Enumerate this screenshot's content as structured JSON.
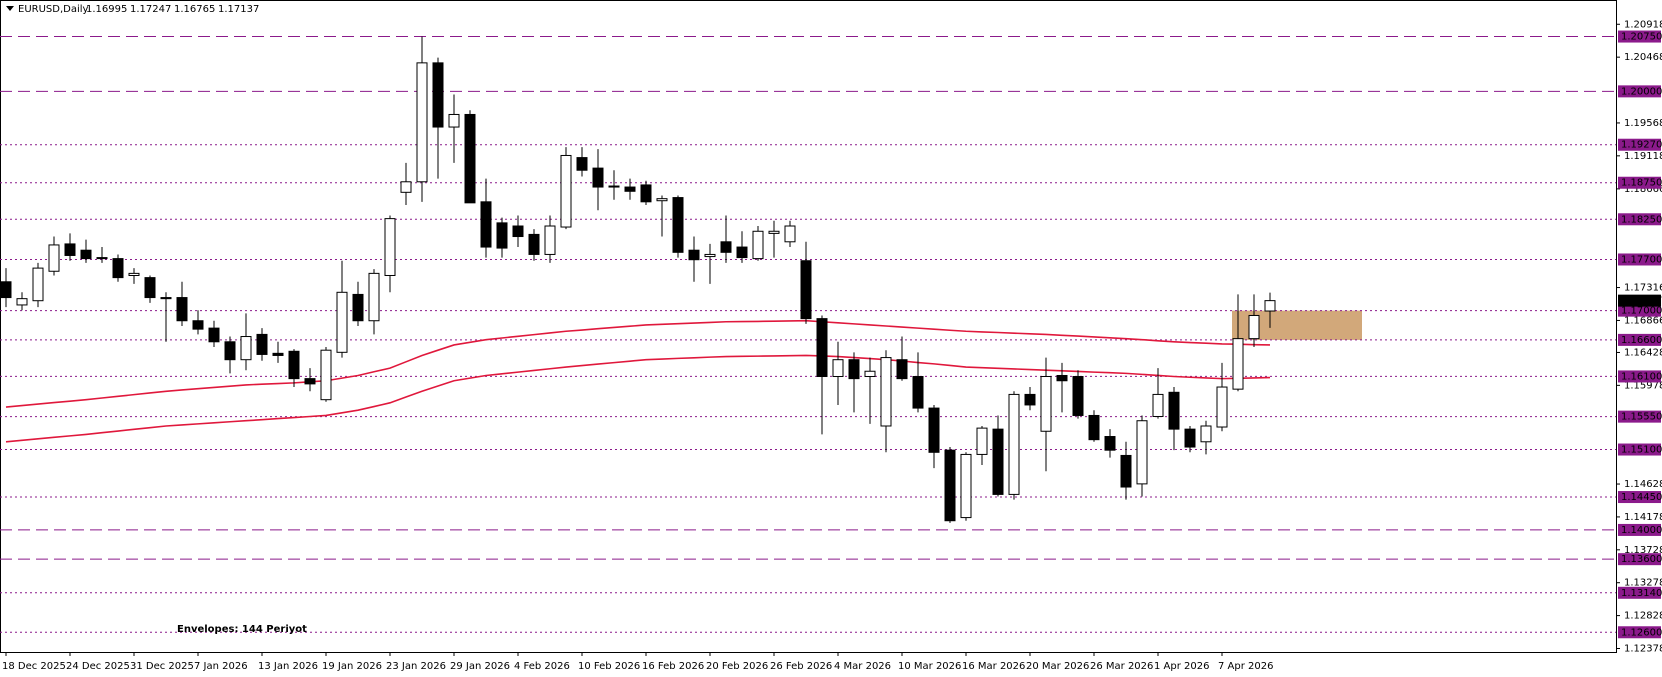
{
  "chart_data": {
    "type": "candlestick",
    "title": "EURUSD,Daily",
    "annotation": "Envelopes: 144 Periyot",
    "annotation_color": "#e0183c",
    "categories": [
      "18 Dec 2025",
      null,
      null,
      null,
      "24 Dec 2025",
      null,
      null,
      null,
      "31 Dec 2025",
      null,
      null,
      null,
      "7 Jan 2026",
      null,
      null,
      null,
      "13 Jan 2026",
      null,
      null,
      null,
      "19 Jan 2026",
      null,
      null,
      null,
      "23 Jan 2026",
      null,
      null,
      null,
      "29 Jan 2026",
      null,
      null,
      null,
      "4 Feb 2026",
      null,
      null,
      null,
      "10 Feb 2026",
      null,
      null,
      null,
      "16 Feb 2026",
      null,
      null,
      null,
      "20 Feb 2026",
      null,
      null,
      null,
      "26 Feb 2026",
      null,
      null,
      null,
      "4 Mar 2026",
      null,
      null,
      null,
      "10 Mar 2026",
      null,
      null,
      null,
      "16 Mar 2026",
      null,
      null,
      null,
      "20 Mar 2026",
      null,
      null,
      null,
      "26 Mar 2026",
      null,
      null,
      null,
      "1 Apr 2026",
      null,
      null,
      null,
      "7 Apr 2026",
      null,
      null,
      null
    ],
    "open": [
      1.17395,
      1.17078,
      1.17136,
      1.17539,
      1.17913,
      1.17827,
      1.17726,
      1.17712,
      1.17481,
      1.17452,
      1.17179,
      1.17179,
      1.16862,
      1.16761,
      1.16574,
      1.16329,
      1.16675,
      1.16416,
      1.16444,
      1.1607,
      1.15782,
      1.1643,
      1.17222,
      1.16862,
      1.17481,
      1.18619,
      1.18763,
      1.2039,
      1.19512,
      1.19684,
      1.18489,
      1.18201,
      1.18158,
      1.18043,
      1.17769,
      1.18144,
      1.19094,
      1.1895,
      1.18705,
      1.18691,
      1.1872,
      1.18504,
      1.18547,
      1.17827,
      1.1774,
      1.17942,
      1.1787,
      1.17712,
      1.18057,
      1.17942,
      1.17683,
      1.16891,
      1.16099,
      1.16329,
      1.16099,
      1.15422,
      1.16329,
      1.16099,
      1.15667,
      1.15091,
      1.14169,
      1.15033,
      1.15379,
      1.14486,
      1.15854,
      1.1535,
      1.16113,
      1.16099,
      1.15566,
      1.15278,
      1.15019,
      1.1463,
      1.15552,
      1.15883,
      1.15379,
      1.15206,
      1.15408,
      1.15926,
      1.16617,
      1.16995
    ],
    "high": [
      1.17582,
      1.17251,
      1.17654,
      1.18014,
      1.18057,
      1.17971,
      1.1787,
      1.17769,
      1.17582,
      1.17481,
      1.17251,
      1.17395,
      1.17006,
      1.16862,
      1.16646,
      1.16963,
      1.16761,
      1.16574,
      1.16473,
      1.16214,
      1.16502,
      1.17683,
      1.17395,
      1.17568,
      1.18302,
      1.19022,
      1.2075,
      1.20462,
      1.19958,
      1.19742,
      1.18806,
      1.18273,
      1.18302,
      1.18115,
      1.18302,
      1.19238,
      1.19238,
      1.19209,
      1.18921,
      1.18806,
      1.18777,
      1.18576,
      1.18576,
      1.18014,
      1.17913,
      1.18302,
      1.18086,
      1.18158,
      1.1823,
      1.1823,
      1.17942,
      1.16934,
      1.16574,
      1.1643,
      1.16358,
      1.16459,
      1.16646,
      1.1643,
      1.1571,
      1.15134,
      1.15062,
      1.15422,
      1.15566,
      1.15897,
      1.15955,
      1.16358,
      1.16286,
      1.16185,
      1.15638,
      1.15379,
      1.15206,
      1.15566,
      1.16214,
      1.15955,
      1.15422,
      1.15494,
      1.16286,
      1.17222,
      1.17222,
      1.17247
    ],
    "low": [
      1.17049,
      1.17006,
      1.17049,
      1.17481,
      1.17683,
      1.17654,
      1.17654,
      1.17395,
      1.17366,
      1.17107,
      1.16574,
      1.1679,
      1.16675,
      1.16502,
      1.16142,
      1.16185,
      1.16315,
      1.16286,
      1.15955,
      1.15897,
      1.15753,
      1.16358,
      1.1679,
      1.16675,
      1.17251,
      1.18446,
      1.18489,
      1.18806,
      1.19022,
      1.18475,
      1.17726,
      1.17726,
      1.1787,
      1.17683,
      1.17654,
      1.18115,
      1.18835,
      1.18374,
      1.18518,
      1.18518,
      1.18446,
      1.18014,
      1.17726,
      1.17395,
      1.17366,
      1.17654,
      1.17654,
      1.17683,
      1.17726,
      1.1787,
      1.16819,
      1.15307,
      1.1571,
      1.15609,
      1.15451,
      1.15062,
      1.16041,
      1.15609,
      1.14846,
      1.14097,
      1.14126,
      1.14889,
      1.14457,
      1.14414,
      1.15638,
      1.14803,
      1.15609,
      1.15523,
      1.15206,
      1.1499,
      1.14414,
      1.14457,
      1.15523,
      1.15091,
      1.15062,
      1.15033,
      1.1535,
      1.15897,
      1.16502,
      1.16765
    ],
    "close": [
      1.17179,
      1.17164,
      1.17582,
      1.17899,
      1.17755,
      1.17712,
      1.17712,
      1.17452,
      1.1751,
      1.17179,
      1.17164,
      1.16862,
      1.16747,
      1.16574,
      1.16329,
      1.16646,
      1.16401,
      1.16387,
      1.1607,
      1.15998,
      1.16459,
      1.17251,
      1.16862,
      1.1751,
      1.18259,
      1.18763,
      1.2039,
      1.19512,
      1.19684,
      1.18475,
      1.1787,
      1.17856,
      1.18014,
      1.17769,
      1.18158,
      1.19123,
      1.18921,
      1.18691,
      1.18691,
      1.18633,
      1.18489,
      1.18532,
      1.17798,
      1.17697,
      1.17769,
      1.17798,
      1.17726,
      1.18086,
      1.18086,
      1.18158,
      1.16891,
      1.16099,
      1.16329,
      1.1607,
      1.16171,
      1.16358,
      1.1607,
      1.15667,
      1.15062,
      1.14126,
      1.15033,
      1.15393,
      1.14486,
      1.15854,
      1.1571,
      1.16099,
      1.16041,
      1.15566,
      1.15235,
      1.15091,
      1.14587,
      1.15494,
      1.15854,
      1.15379,
      1.15134,
      1.15422,
      1.15955,
      1.16617,
      1.16934,
      1.17137
    ],
    "up_color": "#ffffff",
    "down_color": "#000000",
    "wick_color": "#000000",
    "envelopes": [
      {
        "color": "#e0183c",
        "values": [
          1.15681,
          1.15701,
          1.15722,
          1.15742,
          1.15762,
          1.15782,
          1.15805,
          1.15828,
          1.15851,
          1.15874,
          1.15897,
          1.15915,
          1.15932,
          1.15949,
          1.15966,
          1.15984,
          1.15994,
          1.16002,
          1.16012,
          1.16027,
          1.16041,
          1.16077,
          1.16113,
          1.16164,
          1.16214,
          1.163,
          1.16387,
          1.16459,
          1.16531,
          1.16567,
          1.16603,
          1.16626,
          1.16649,
          1.16672,
          1.16695,
          1.16718,
          1.16735,
          1.16753,
          1.1677,
          1.16787,
          1.16804,
          1.16813,
          1.16822,
          1.1683,
          1.16839,
          1.16848,
          1.16851,
          1.16853,
          1.16856,
          1.16859,
          1.16862,
          1.16848,
          1.16833,
          1.16819,
          1.16804,
          1.1679,
          1.16776,
          1.16761,
          1.16747,
          1.16732,
          1.16718,
          1.16709,
          1.16701,
          1.16692,
          1.16683,
          1.16675,
          1.16663,
          1.16652,
          1.1664,
          1.16629,
          1.16617,
          1.16603,
          1.16588,
          1.16574,
          1.16564,
          1.16555,
          1.16545,
          1.16541,
          1.16535,
          1.16531
        ]
      },
      {
        "color": "#e0183c",
        "values": [
          1.15206,
          1.15226,
          1.15246,
          1.15267,
          1.15287,
          1.15307,
          1.1533,
          1.15353,
          1.15376,
          1.15399,
          1.15422,
          1.15436,
          1.15451,
          1.15465,
          1.1548,
          1.15494,
          1.15508,
          1.15523,
          1.15537,
          1.15552,
          1.15566,
          1.15602,
          1.15638,
          1.15688,
          1.15739,
          1.15818,
          1.15897,
          1.15969,
          1.16041,
          1.16077,
          1.16113,
          1.16136,
          1.16159,
          1.16182,
          1.16205,
          1.16228,
          1.16249,
          1.16269,
          1.16289,
          1.16309,
          1.16329,
          1.16338,
          1.16347,
          1.16355,
          1.16364,
          1.16372,
          1.16375,
          1.16378,
          1.16381,
          1.16384,
          1.16387,
          1.1638,
          1.16372,
          1.16358,
          1.16344,
          1.16329,
          1.16311,
          1.1629,
          1.16272,
          1.1625,
          1.16228,
          1.1622,
          1.16211,
          1.16203,
          1.16194,
          1.16185,
          1.16177,
          1.16168,
          1.16159,
          1.16151,
          1.16142,
          1.16128,
          1.16113,
          1.16099,
          1.16089,
          1.1608,
          1.1607,
          1.16074,
          1.1608,
          1.16084
        ]
      }
    ],
    "zone": {
      "low": 1.166,
      "high": 1.17,
      "color": "#d2a87a"
    },
    "level_color": "#8b1a8b",
    "levels": [
      {
        "value": 1.2075,
        "label": "1.20750",
        "style": "dash"
      },
      {
        "value": 1.2,
        "label": "1.20000",
        "style": "dash"
      },
      {
        "value": 1.1927,
        "label": "1.19270",
        "style": "dot"
      },
      {
        "value": 1.1875,
        "label": "1.18750",
        "style": "dot"
      },
      {
        "value": 1.1825,
        "label": "1.18250",
        "style": "dot"
      },
      {
        "value": 1.177,
        "label": "1.17700",
        "style": "dot"
      },
      {
        "value": 1.17,
        "label": "1.17000",
        "style": "dot"
      },
      {
        "value": 1.166,
        "label": "1.16600",
        "style": "dot"
      },
      {
        "value": 1.161,
        "label": "1.16100",
        "style": "dot"
      },
      {
        "value": 1.1555,
        "label": "1.15550",
        "style": "dot"
      },
      {
        "value": 1.151,
        "label": "1.15100",
        "style": "dot"
      },
      {
        "value": 1.1445,
        "label": "1.14450",
        "style": "dot"
      },
      {
        "value": 1.14,
        "label": "1.14000",
        "style": "dash"
      },
      {
        "value": 1.136,
        "label": "1.13600",
        "style": "dash"
      },
      {
        "value": 1.1314,
        "label": "1.13140",
        "style": "dot"
      },
      {
        "value": 1.126,
        "label": "1.12600",
        "style": "dot"
      }
    ],
    "ylim": [
      1.1233,
      1.2125
    ],
    "yticks": [
      1.20918,
      1.20468,
      1.19568,
      1.19118,
      1.18666,
      1.17316,
      1.16866,
      1.16428,
      1.15978,
      1.14628,
      1.14178,
      1.13728,
      1.13278,
      1.12828,
      1.12378
    ],
    "grid": false
  }
}
